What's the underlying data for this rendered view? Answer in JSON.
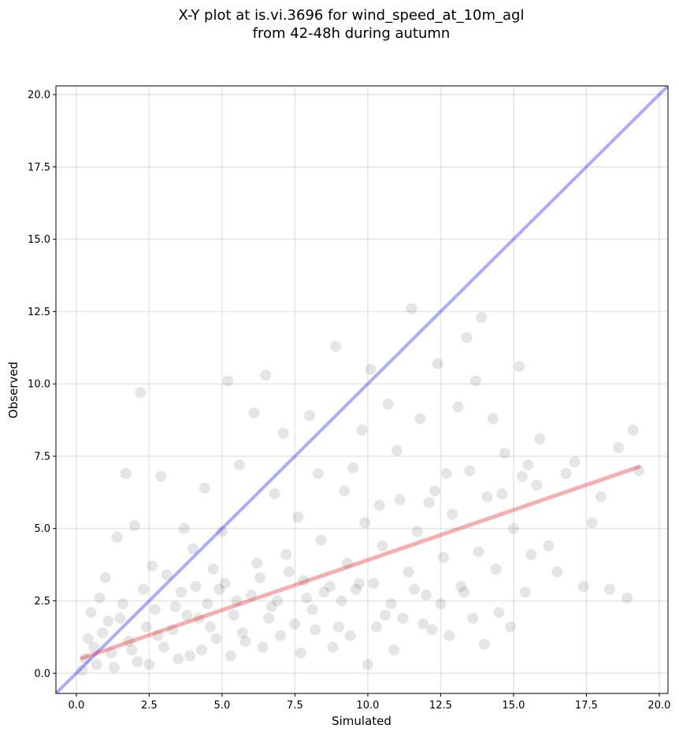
{
  "chart_data": {
    "type": "scatter",
    "title": "X-Y plot at is.vi.3696 for wind_speed_at_10m_agl",
    "subtitle": "from 42-48h during autumn",
    "xlabel": "Simulated",
    "ylabel": "Observed",
    "xlim": [
      -0.7,
      20.3
    ],
    "ylim": [
      -0.7,
      20.3
    ],
    "xticks": [
      "0.0",
      "2.5",
      "5.0",
      "7.5",
      "10.0",
      "12.5",
      "15.0",
      "17.5",
      "20.0"
    ],
    "yticks": [
      "0.0",
      "2.5",
      "5.0",
      "7.5",
      "10.0",
      "12.5",
      "15.0",
      "17.5",
      "20.0"
    ],
    "grid": true,
    "point_color": "#000000",
    "point_alpha": 0.1,
    "identity_line": {
      "x": [
        -0.7,
        20.3
      ],
      "y": [
        -0.7,
        20.3
      ],
      "color": "#0000ff"
    },
    "fit_line": {
      "x": [
        0.2,
        19.3
      ],
      "y": [
        0.52,
        7.13
      ],
      "color": "#e31a1c"
    },
    "series": [
      {
        "points": [
          [
            0.3,
            0.5
          ],
          [
            0.6,
            0.9
          ],
          [
            0.9,
            1.4
          ],
          [
            1.2,
            0.7
          ],
          [
            1.5,
            1.9
          ],
          [
            1.8,
            1.1
          ],
          [
            2.1,
            0.4
          ],
          [
            2.4,
            1.6
          ],
          [
            2.7,
            2.2
          ],
          [
            3.0,
            0.9
          ],
          [
            3.3,
            1.5
          ],
          [
            3.6,
            2.8
          ],
          [
            3.9,
            0.6
          ],
          [
            4.2,
            1.9
          ],
          [
            4.5,
            2.4
          ],
          [
            4.8,
            1.2
          ],
          [
            5.1,
            3.1
          ],
          [
            5.4,
            2.0
          ],
          [
            5.7,
            1.4
          ],
          [
            6.0,
            2.7
          ],
          [
            6.3,
            3.3
          ],
          [
            6.6,
            1.9
          ],
          [
            6.9,
            2.5
          ],
          [
            7.2,
            4.1
          ],
          [
            7.5,
            1.7
          ],
          [
            7.8,
            3.2
          ],
          [
            8.1,
            2.2
          ],
          [
            8.4,
            4.6
          ],
          [
            8.7,
            3.0
          ],
          [
            9.0,
            1.6
          ],
          [
            9.3,
            3.8
          ],
          [
            9.6,
            2.9
          ],
          [
            9.9,
            5.2
          ],
          [
            10.2,
            3.1
          ],
          [
            10.5,
            4.4
          ],
          [
            10.8,
            2.4
          ],
          [
            11.1,
            6.0
          ],
          [
            11.4,
            3.5
          ],
          [
            11.7,
            4.9
          ],
          [
            12.0,
            2.7
          ],
          [
            12.3,
            6.3
          ],
          [
            12.6,
            4.0
          ],
          [
            12.9,
            5.5
          ],
          [
            13.2,
            3.0
          ],
          [
            13.5,
            7.0
          ],
          [
            13.8,
            4.2
          ],
          [
            14.1,
            6.1
          ],
          [
            14.4,
            3.6
          ],
          [
            14.7,
            7.6
          ],
          [
            15.0,
            5.0
          ],
          [
            15.3,
            6.8
          ],
          [
            15.6,
            4.1
          ],
          [
            15.9,
            8.1
          ],
          [
            16.2,
            4.4
          ],
          [
            16.5,
            3.5
          ],
          [
            16.8,
            6.9
          ],
          [
            17.1,
            7.3
          ],
          [
            17.4,
            3.0
          ],
          [
            17.7,
            5.2
          ],
          [
            18.0,
            6.1
          ],
          [
            18.3,
            2.9
          ],
          [
            18.6,
            7.8
          ],
          [
            18.9,
            2.6
          ],
          [
            19.1,
            8.4
          ],
          [
            19.3,
            7.0
          ],
          [
            0.5,
            2.1
          ],
          [
            1.0,
            3.3
          ],
          [
            1.4,
            4.7
          ],
          [
            1.7,
            6.9
          ],
          [
            2.2,
            9.7
          ],
          [
            2.0,
            5.1
          ],
          [
            2.6,
            3.7
          ],
          [
            2.9,
            6.8
          ],
          [
            3.4,
            2.3
          ],
          [
            3.7,
            5.0
          ],
          [
            4.0,
            4.3
          ],
          [
            4.4,
            6.4
          ],
          [
            4.7,
            3.6
          ],
          [
            5.2,
            10.1
          ],
          [
            5.0,
            4.9
          ],
          [
            5.6,
            7.2
          ],
          [
            6.1,
            9.0
          ],
          [
            6.5,
            10.3
          ],
          [
            6.8,
            6.2
          ],
          [
            7.1,
            8.3
          ],
          [
            7.6,
            5.4
          ],
          [
            8.0,
            8.9
          ],
          [
            8.3,
            6.9
          ],
          [
            8.9,
            11.3
          ],
          [
            9.2,
            6.3
          ],
          [
            9.5,
            7.1
          ],
          [
            9.8,
            8.4
          ],
          [
            10.1,
            10.5
          ],
          [
            10.4,
            5.8
          ],
          [
            10.7,
            9.3
          ],
          [
            11.0,
            7.7
          ],
          [
            11.5,
            12.6
          ],
          [
            11.8,
            8.8
          ],
          [
            12.1,
            5.9
          ],
          [
            12.4,
            10.7
          ],
          [
            12.7,
            6.9
          ],
          [
            13.1,
            9.2
          ],
          [
            13.4,
            11.6
          ],
          [
            13.7,
            10.1
          ],
          [
            13.9,
            12.3
          ],
          [
            14.3,
            8.8
          ],
          [
            14.6,
            6.2
          ],
          [
            15.2,
            10.6
          ],
          [
            15.5,
            7.2
          ],
          [
            15.8,
            6.5
          ],
          [
            0.2,
            0.1
          ],
          [
            0.4,
            1.2
          ],
          [
            0.7,
            0.3
          ],
          [
            0.8,
            2.6
          ],
          [
            1.1,
            1.8
          ],
          [
            1.3,
            0.2
          ],
          [
            1.6,
            2.4
          ],
          [
            1.9,
            0.8
          ],
          [
            2.3,
            2.9
          ],
          [
            2.5,
            0.3
          ],
          [
            2.8,
            1.3
          ],
          [
            3.1,
            3.4
          ],
          [
            3.5,
            0.5
          ],
          [
            3.8,
            2.0
          ],
          [
            4.1,
            3.0
          ],
          [
            4.3,
            0.8
          ],
          [
            4.6,
            1.6
          ],
          [
            4.9,
            2.9
          ],
          [
            5.3,
            0.6
          ],
          [
            5.5,
            2.5
          ],
          [
            5.8,
            1.1
          ],
          [
            6.2,
            3.8
          ],
          [
            6.4,
            0.9
          ],
          [
            6.7,
            2.3
          ],
          [
            7.0,
            1.3
          ],
          [
            7.3,
            3.5
          ],
          [
            7.7,
            0.7
          ],
          [
            7.9,
            2.6
          ],
          [
            8.2,
            1.5
          ],
          [
            8.5,
            2.8
          ],
          [
            8.8,
            0.9
          ],
          [
            9.1,
            2.5
          ],
          [
            9.4,
            1.3
          ],
          [
            9.7,
            3.1
          ],
          [
            10.0,
            0.3
          ],
          [
            10.3,
            1.6
          ],
          [
            10.6,
            2.0
          ],
          [
            10.9,
            0.8
          ],
          [
            11.2,
            1.9
          ],
          [
            11.6,
            2.9
          ],
          [
            11.9,
            1.7
          ],
          [
            12.2,
            1.5
          ],
          [
            12.5,
            2.4
          ],
          [
            12.8,
            1.3
          ],
          [
            13.3,
            2.8
          ],
          [
            13.6,
            1.9
          ],
          [
            14.0,
            1.0
          ],
          [
            14.5,
            2.1
          ],
          [
            14.9,
            1.6
          ],
          [
            15.4,
            2.8
          ]
        ]
      }
    ]
  }
}
